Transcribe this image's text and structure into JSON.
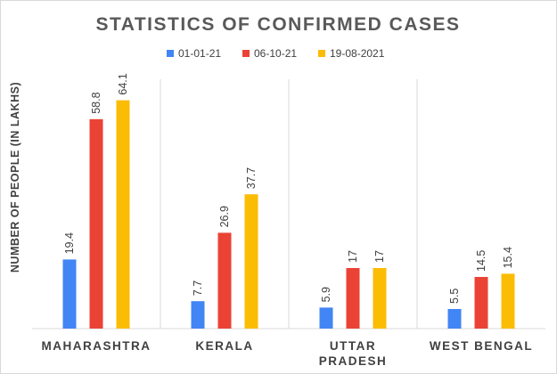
{
  "chart_data": {
    "type": "bar",
    "title": "STATISTICS OF CONFIRMED CASES",
    "xlabel": "",
    "ylabel": "NUMBER OF PEOPLE (IN LAKHS)",
    "categories": [
      [
        "MAHARASHTRA"
      ],
      [
        "KERALA"
      ],
      [
        "UTTAR",
        "PRADESH"
      ],
      [
        "WEST BENGAL"
      ]
    ],
    "series": [
      {
        "name": "01-01-21",
        "color": "#4285f4",
        "values": [
          19.4,
          7.7,
          5.9,
          5.5
        ]
      },
      {
        "name": "06-10-21",
        "color": "#ea4335",
        "values": [
          58.8,
          26.9,
          17,
          14.5
        ]
      },
      {
        "name": "19-08-2021",
        "color": "#fbbc04",
        "values": [
          64.1,
          37.7,
          17,
          15.4
        ]
      }
    ],
    "ylim": [
      0,
      70
    ],
    "grid": false,
    "legend_position": "top"
  }
}
